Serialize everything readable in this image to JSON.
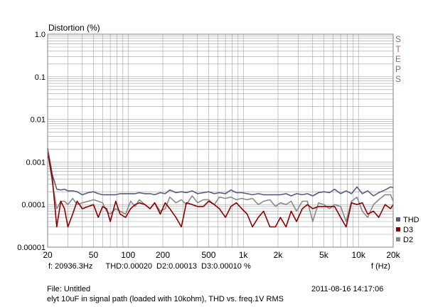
{
  "header": {
    "ylabel": "Distortion (%)",
    "steps": [
      "S",
      "T",
      "E",
      "P",
      "S"
    ]
  },
  "footer": {
    "readout": "f: 20936.3Hz      THD:0.00020  D2:0.00013  D3:0.00010 %",
    "xlabel": "f (Hz)",
    "file": "File: Untitled",
    "date": "2011-08-16 14:17:06",
    "description": "elyt 10uF in signal path (loaded with 10kohm), THD vs. freq.1V RMS"
  },
  "colors": {
    "background": "#ffffff",
    "grid": "#a0a0a0",
    "THD": "#5a5a82",
    "D3": "#8b0000",
    "D2": "#8a8a8a"
  },
  "chart_data": {
    "type": "line",
    "xscale": "log",
    "yscale": "log",
    "xlim": [
      20,
      20000
    ],
    "ylim": [
      1e-05,
      1
    ],
    "xlabel": "f (Hz)",
    "ylabel": "Distortion (%)",
    "xticks": [
      "20",
      "50",
      "100",
      "200",
      "500",
      "1k",
      "2k",
      "5k",
      "10k",
      "20k"
    ],
    "xtick_values": [
      20,
      50,
      100,
      200,
      500,
      1000,
      2000,
      5000,
      10000,
      20000
    ],
    "yticks": [
      "1.0",
      "0.1",
      "0.01",
      "0.001",
      "0.0001",
      "0.00001"
    ],
    "ytick_values": [
      1,
      0.1,
      0.01,
      0.001,
      0.0001,
      1e-05
    ],
    "grid": true,
    "legend_position": "bottom-right",
    "x": [
      20,
      22,
      24,
      26,
      28,
      30,
      33,
      36,
      40,
      45,
      50,
      55,
      60,
      65,
      70,
      78,
      85,
      95,
      105,
      115,
      125,
      140,
      155,
      170,
      190,
      210,
      230,
      260,
      290,
      320,
      360,
      400,
      450,
      500,
      560,
      620,
      700,
      780,
      870,
      970,
      1080,
      1200,
      1350,
      1500,
      1700,
      1900,
      2100,
      2350,
      2600,
      2900,
      3250,
      3600,
      4000,
      4500,
      5000,
      5600,
      6200,
      7000,
      7800,
      8700,
      9700,
      10800,
      12000,
      13500,
      15000,
      17000,
      19000,
      20000
    ],
    "series": [
      {
        "name": "THD",
        "values": [
          0.0021,
          0.0005,
          0.00023,
          0.00022,
          0.00023,
          0.00021,
          0.00021,
          0.0002,
          0.00017,
          0.00019,
          0.0002,
          0.00018,
          0.00017,
          0.00017,
          0.00017,
          0.00017,
          0.00018,
          0.00018,
          0.00018,
          0.00018,
          0.00019,
          0.00018,
          0.00018,
          0.00017,
          0.00019,
          0.00018,
          0.00022,
          0.00019,
          0.0002,
          0.00019,
          0.00021,
          0.00018,
          0.00019,
          0.0002,
          0.00018,
          0.00019,
          0.00018,
          0.00022,
          0.00019,
          0.00019,
          0.00018,
          0.00017,
          0.00018,
          0.00017,
          0.00017,
          0.00017,
          0.00017,
          0.00018,
          0.00016,
          0.00018,
          0.00017,
          0.00018,
          0.00016,
          0.00019,
          0.0002,
          0.00019,
          0.00023,
          0.00018,
          0.00021,
          0.00018,
          0.00026,
          0.00018,
          0.00021,
          0.00016,
          0.00019,
          0.00022,
          0.00026,
          0.00025
        ]
      },
      {
        "name": "D3",
        "values": [
          0.0017,
          0.0004,
          3e-05,
          0.00012,
          8e-05,
          3e-05,
          6e-05,
          0.00012,
          8e-05,
          9e-05,
          0.0001,
          5e-05,
          9e-05,
          8e-05,
          4e-05,
          0.00012,
          6e-05,
          5e-05,
          8e-05,
          0.0001,
          0.00011,
          0.0001,
          8e-05,
          0.00011,
          6e-05,
          0.00011,
          8e-05,
          5e-05,
          3e-05,
          0.00011,
          0.0001,
          9e-05,
          9e-05,
          0.00012,
          0.0001,
          8e-05,
          5e-05,
          9e-05,
          0.00011,
          8e-05,
          6e-05,
          3e-05,
          5e-05,
          7e-05,
          3e-05,
          3e-05,
          5e-05,
          3e-05,
          7e-05,
          4e-05,
          8e-05,
          0.0001,
          8e-05,
          9e-05,
          9e-05,
          9e-05,
          9e-05,
          5e-05,
          3e-05,
          0.00011,
          0.0001,
          0.00011,
          6e-05,
          7e-05,
          5e-05,
          0.0001,
          8e-05,
          0.0001
        ]
      },
      {
        "name": "D2",
        "values": [
          0.0019,
          0.00032,
          8e-05,
          0.00012,
          0.00012,
          0.0001,
          0.00014,
          0.0001,
          0.00011,
          0.00012,
          0.00013,
          0.00012,
          0.00011,
          7e-05,
          6e-05,
          8e-05,
          7e-05,
          6e-05,
          0.00012,
          9e-05,
          0.00013,
          0.0001,
          8e-05,
          0.00011,
          7e-05,
          8e-05,
          0.00015,
          0.00011,
          0.00013,
          0.0001,
          0.00016,
          0.00011,
          0.00013,
          0.00013,
          0.0001,
          0.00015,
          0.00014,
          0.00015,
          0.00013,
          0.00014,
          0.00013,
          0.00014,
          0.0001,
          0.00012,
          0.00013,
          9e-05,
          0.00011,
          0.0001,
          0.00012,
          7e-05,
          0.00012,
          0.00012,
          4e-05,
          0.00011,
          0.0001,
          8e-05,
          0.0001,
          9e-05,
          4e-05,
          0.00012,
          0.00015,
          7e-05,
          5e-05,
          0.0001,
          0.00013,
          0.00017,
          0.00017,
          0.00012
        ]
      }
    ]
  }
}
